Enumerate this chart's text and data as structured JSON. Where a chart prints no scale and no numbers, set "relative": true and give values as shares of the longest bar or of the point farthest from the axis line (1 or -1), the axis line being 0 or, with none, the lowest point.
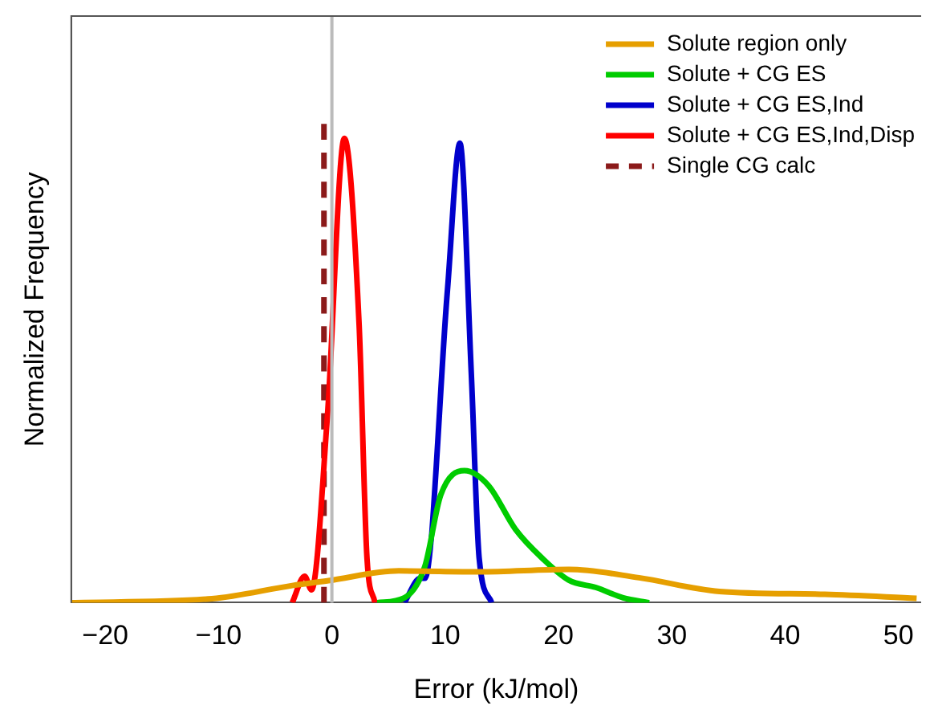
{
  "chart_data": {
    "type": "line",
    "relative": true,
    "xlabel": "Error (kJ/mol)",
    "ylabel": "Normalized Frequency",
    "xlim": [
      -23,
      52
    ],
    "xticks": [
      {
        "value": -20,
        "label": "−20"
      },
      {
        "value": -10,
        "label": "−10"
      },
      0,
      10,
      20,
      30,
      40,
      50
    ],
    "grid": false,
    "legend": "top right",
    "marker": "none",
    "ref_lines": [
      {
        "axis": "x",
        "value": 0,
        "label": null,
        "color": "#bbbbbb"
      }
    ],
    "series": [
      {
        "name": "Solute region only",
        "color": "#e69f00",
        "x": [
          -23,
          -10.6,
          -3.5,
          -0.3,
          5.9,
          13,
          20.9,
          27.1,
          34.2,
          43.5,
          51.6
        ],
        "values": [
          0,
          0.008,
          0.035,
          0.045,
          0.065,
          0.063,
          0.068,
          0.051,
          0.023,
          0.017,
          0.009
        ]
      },
      {
        "name": "Solute + CG ES",
        "color": "#00cc00",
        "x": [
          4.0,
          6.4,
          8.2,
          9.6,
          11.7,
          13.8,
          16.2,
          18.6,
          20.9,
          23.3,
          25.7,
          28.0
        ],
        "values": [
          0,
          0.01,
          0.074,
          0.22,
          0.27,
          0.24,
          0.15,
          0.09,
          0.046,
          0.031,
          0.01,
          0
        ]
      },
      {
        "name": "Solute + CG ES,Ind",
        "color": "#0000cc",
        "x": [
          6.4,
          7.8,
          8.2,
          10.2,
          11.3,
          12.3,
          13.0,
          14.1
        ],
        "values": [
          0,
          0.05,
          0.05,
          0.64,
          0.94,
          0.47,
          0.09,
          0
        ]
      },
      {
        "name": "Solute + CG ES,Ind,Disp",
        "color": "#ff0000",
        "x": [
          -3.5,
          -2.4,
          -1.8,
          -0.4,
          1.1,
          2.4,
          3.1,
          3.8
        ],
        "values": [
          0,
          0.054,
          0.026,
          0.38,
          0.95,
          0.57,
          0.09,
          0
        ]
      },
      {
        "name": "Single CG calc",
        "color": "#8b1a1a",
        "line_style": "dashed",
        "x": [
          -0.7,
          -0.7
        ],
        "values": [
          0,
          1
        ]
      }
    ]
  }
}
